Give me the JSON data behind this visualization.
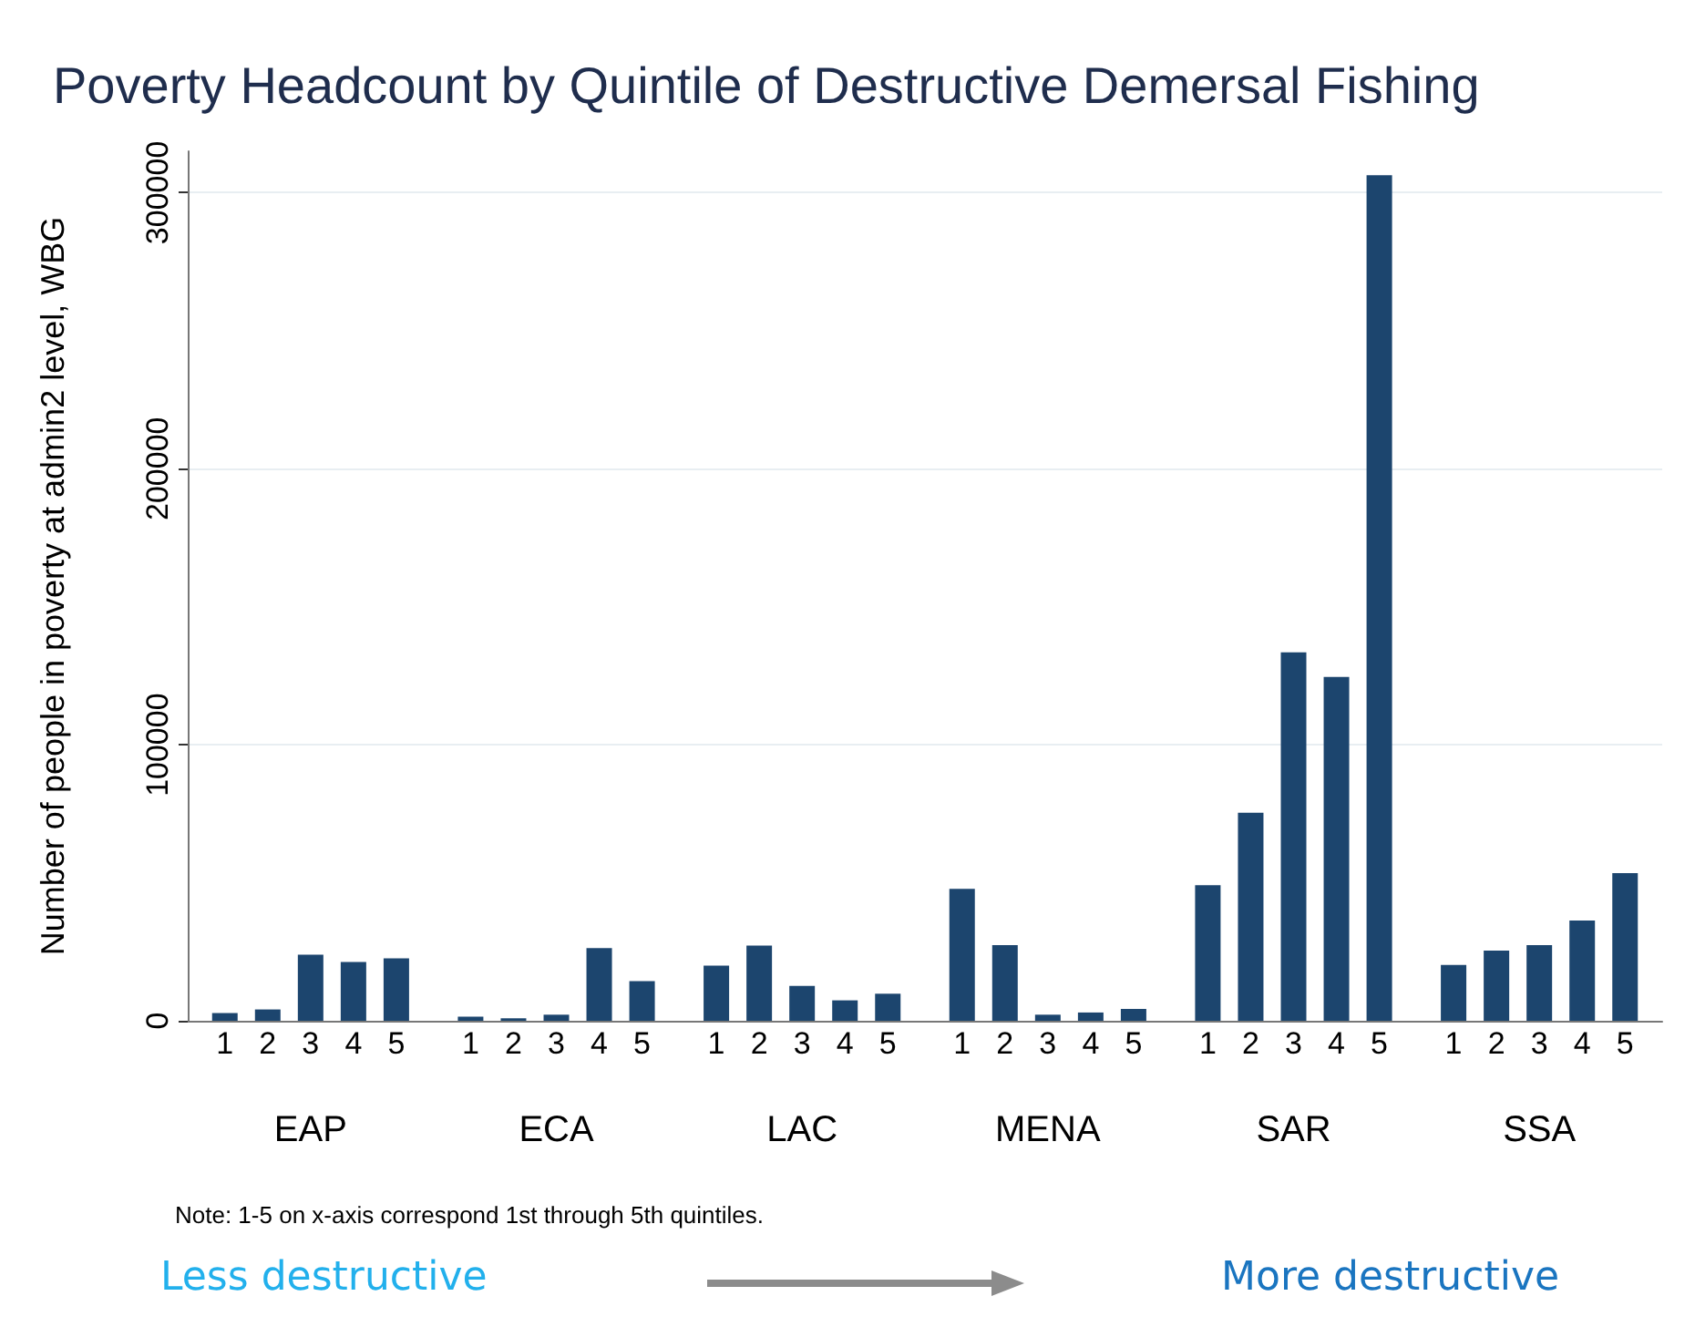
{
  "chart_data": {
    "type": "bar",
    "title": "Poverty Headcount by Quintile of Destructive Demersal Fishing",
    "ylabel": "Number of people in poverty at admin2 level, WBG",
    "categories": [
      "EAP",
      "ECA",
      "LAC",
      "MENA",
      "SAR",
      "SSA"
    ],
    "series": [
      {
        "name": "1",
        "color": "#1c456e",
        "values": [
          2800,
          1500,
          20000,
          47800,
          49100,
          20200
        ]
      },
      {
        "name": "2",
        "color": "#1c456e",
        "values": [
          4100,
          900,
          27200,
          27400,
          75400,
          25400
        ]
      },
      {
        "name": "3",
        "color": "#1c456e",
        "values": [
          23900,
          2200,
          12600,
          2200,
          133500,
          27400
        ]
      },
      {
        "name": "4",
        "color": "#1c456e",
        "values": [
          21300,
          26300,
          7400,
          3000,
          124600,
          36300
        ]
      },
      {
        "name": "5",
        "color": "#1c456e",
        "values": [
          22600,
          14400,
          9800,
          4300,
          306300,
          53500
        ]
      }
    ],
    "ylim": [
      0,
      315000
    ],
    "yticks": [
      0,
      100000,
      200000,
      300000
    ],
    "grid": "y",
    "legend": false,
    "annotations": [
      "Note: 1-5 on x-axis correspond 1st through 5th quintiles.",
      "Less destructive",
      "More destructive"
    ]
  }
}
